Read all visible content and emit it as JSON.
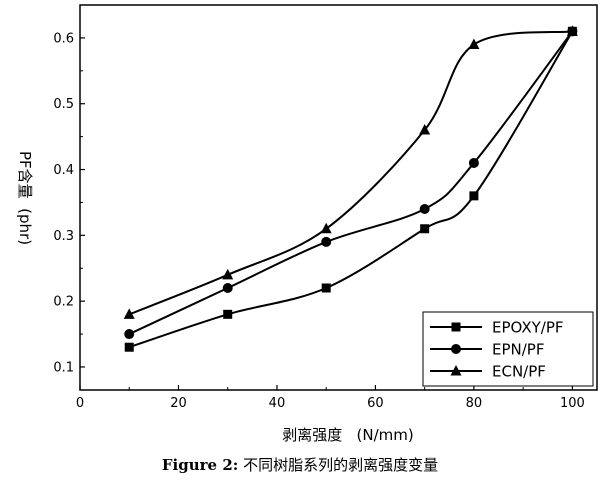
{
  "chart_data": {
    "type": "line",
    "x": [
      10,
      30,
      50,
      70,
      80,
      100
    ],
    "series": [
      {
        "name": "EPOXY/PF",
        "marker": "square",
        "values": [
          0.13,
          0.18,
          0.22,
          0.31,
          0.36,
          0.61
        ]
      },
      {
        "name": "EPN/PF",
        "marker": "circle",
        "values": [
          0.15,
          0.22,
          0.29,
          0.34,
          0.41,
          0.61
        ]
      },
      {
        "name": "ECN/PF",
        "marker": "triangle",
        "values": [
          0.18,
          0.24,
          0.31,
          0.46,
          0.59,
          0.61
        ]
      }
    ],
    "xlabel": "剥离强度   (N/mm)",
    "ylabel": "PF含量  (phr)",
    "xlim": [
      0,
      105
    ],
    "ylim": [
      0.065,
      0.65
    ],
    "xticks": [
      0,
      20,
      40,
      60,
      80,
      100
    ],
    "yticks": [
      0.1,
      0.2,
      0.3,
      0.4,
      0.5,
      0.6
    ],
    "legend_position": "bottom-right",
    "grid": false,
    "color": "#000000"
  },
  "caption": {
    "label": "Figure 2:",
    "text": "不同树脂系列的剥离强度变量"
  }
}
